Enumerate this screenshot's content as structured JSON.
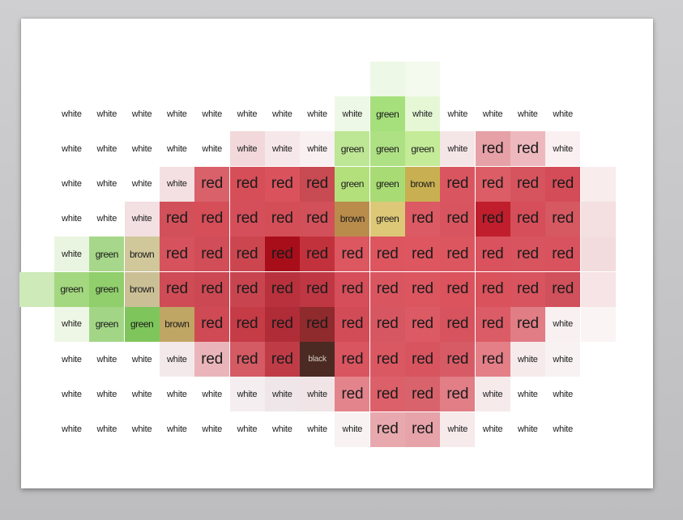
{
  "grid": {
    "rows": [
      [
        "white",
        "white",
        "white",
        "white",
        "white",
        "white",
        "white",
        "white",
        "white",
        "green",
        "white",
        "white",
        "white",
        "white",
        "white"
      ],
      [
        "white",
        "white",
        "white",
        "white",
        "white",
        "white",
        "white",
        "white",
        "green",
        "green",
        "green",
        "white",
        "red",
        "red",
        "white"
      ],
      [
        "white",
        "white",
        "white",
        "white",
        "red",
        "red",
        "red",
        "red",
        "green",
        "green",
        "brown",
        "red",
        "red",
        "red",
        "red"
      ],
      [
        "white",
        "white",
        "white",
        "red",
        "red",
        "red",
        "red",
        "red",
        "brown",
        "green",
        "red",
        "red",
        "red",
        "red",
        "red"
      ],
      [
        "white",
        "green",
        "brown",
        "red",
        "red",
        "red",
        "red",
        "red",
        "red",
        "red",
        "red",
        "red",
        "red",
        "red",
        "red"
      ],
      [
        "green",
        "green",
        "brown",
        "red",
        "red",
        "red",
        "red",
        "red",
        "red",
        "red",
        "red",
        "red",
        "red",
        "red",
        "red"
      ],
      [
        "white",
        "green",
        "green",
        "brown",
        "red",
        "red",
        "red",
        "red",
        "red",
        "red",
        "red",
        "red",
        "red",
        "red",
        "white"
      ],
      [
        "white",
        "white",
        "white",
        "white",
        "red",
        "red",
        "red",
        "black",
        "red",
        "red",
        "red",
        "red",
        "red",
        "white",
        "white"
      ],
      [
        "white",
        "white",
        "white",
        "white",
        "white",
        "white",
        "white",
        "white",
        "red",
        "red",
        "red",
        "red",
        "white",
        "white",
        "white"
      ],
      [
        "white",
        "white",
        "white",
        "white",
        "white",
        "white",
        "white",
        "white",
        "white",
        "red",
        "red",
        "white",
        "white",
        "white",
        "white"
      ]
    ],
    "shades": [
      [
        "#ffffff",
        "#ffffff",
        "#ffffff",
        "#ffffff",
        "#ffffff",
        "#ffffff",
        "#ffffff",
        "#ffffff",
        "#eef8e6",
        "#a6e07c",
        "#e6f7d6",
        "#ffffff",
        "#ffffff",
        "#ffffff",
        "#ffffff"
      ],
      [
        "#ffffff",
        "#ffffff",
        "#ffffff",
        "#ffffff",
        "#ffffff",
        "#f2d8da",
        "#f6e8ea",
        "#f8f0f1",
        "#bde695",
        "#aee084",
        "#c4eb98",
        "#f4e6e7",
        "#e6a1a7",
        "#eeb9be",
        "#faf0f1"
      ],
      [
        "#ffffff",
        "#ffffff",
        "#ffffff",
        "#f4e0e2",
        "#d9616a",
        "#d64e58",
        "#d9525c",
        "#c84a52",
        "#b4e07c",
        "#a8db74",
        "#c8b052",
        "#d95660",
        "#dc5d66",
        "#d6545e",
        "#d44c57"
      ],
      [
        "#ffffff",
        "#ffffff",
        "#f3e0e2",
        "#d2505a",
        "#d54e58",
        "#d54f5a",
        "#d44e58",
        "#d25059",
        "#b98c4c",
        "#dcc877",
        "#dc5a63",
        "#d8555f",
        "#c01e2c",
        "#d54e59",
        "#d65962"
      ],
      [
        "#e9f5e0",
        "#a6d78a",
        "#d0c79a",
        "#d6535d",
        "#d14d57",
        "#cc4650",
        "#a80e1a",
        "#c2323d",
        "#dc5760",
        "#dc555f",
        "#de5660",
        "#dc5660",
        "#d9525d",
        "#d8545e",
        "#d8535e"
      ],
      [
        "#a4d880",
        "#90cf6c",
        "#cbbf96",
        "#cf4b55",
        "#cc4852",
        "#c8454f",
        "#b8313c",
        "#bf3743",
        "#d54e59",
        "#d95660",
        "#dc5660",
        "#da535d",
        "#d9525c",
        "#d8545e",
        "#d0505b"
      ],
      [
        "#eef7e6",
        "#a2d686",
        "#7ec65c",
        "#c0a664",
        "#cf4a54",
        "#c53b46",
        "#b02c37",
        "#8f2a2d",
        "#d24c57",
        "#d65762",
        "#db5a64",
        "#d7535e",
        "#db5c66",
        "#e07d85",
        "#f8f0f1"
      ],
      [
        "#ffffff",
        "#ffffff",
        "#ffffff",
        "#f3e9ea",
        "#eab5ba",
        "#d45a63",
        "#bf3c47",
        "#4a2a22",
        "#d95560",
        "#da5862",
        "#d8545f",
        "#d75b65",
        "#e47f87",
        "#f6eaeb",
        "#f8f2f3"
      ],
      [
        "#ffffff",
        "#ffffff",
        "#ffffff",
        "#ffffff",
        "#ffffff",
        "#f4eef0",
        "#eee6e8",
        "#f0e4e6",
        "#e3848c",
        "#dc6069",
        "#d9636c",
        "#e17e86",
        "#f6eaeb",
        "#ffffff",
        "#ffffff"
      ],
      [
        "#ffffff",
        "#ffffff",
        "#ffffff",
        "#ffffff",
        "#ffffff",
        "#ffffff",
        "#ffffff",
        "#ffffff",
        "#f8f2f3",
        "#e8a9ae",
        "#e6a3a9",
        "#f6eaeb",
        "#ffffff",
        "#ffffff",
        "#ffffff"
      ]
    ]
  }
}
